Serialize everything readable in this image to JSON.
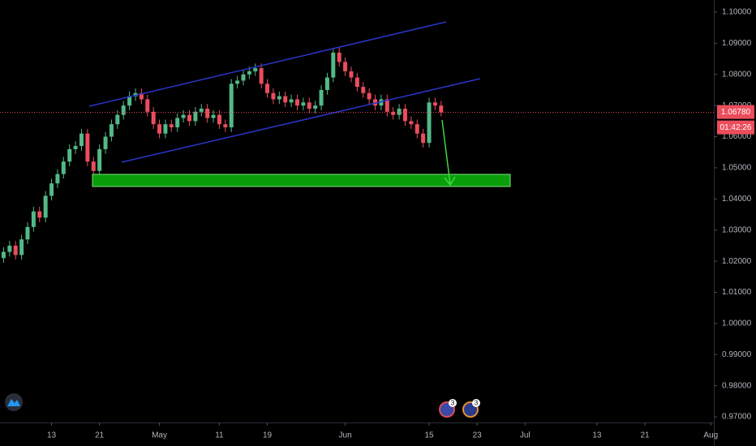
{
  "chart_data": {
    "type": "candlestick",
    "up_color": "#53b987",
    "down_color": "#eb4d5c",
    "categories": [
      null,
      null,
      null,
      null,
      null,
      null,
      null,
      null,
      null,
      null,
      null,
      null,
      null,
      null,
      null,
      null,
      null,
      null,
      null,
      null,
      null,
      null,
      null,
      null,
      null,
      null,
      null,
      null,
      null,
      null,
      null,
      null,
      null,
      null,
      null,
      null,
      null,
      null,
      null,
      null,
      null,
      null,
      null,
      null,
      null,
      null,
      null,
      null,
      null,
      null,
      null,
      null,
      null,
      null,
      null,
      null,
      null,
      null,
      null,
      null,
      null,
      null,
      null,
      null,
      null,
      null,
      null,
      null,
      null,
      null,
      null,
      null,
      null,
      null
    ],
    "open": [
      1.021,
      1.023,
      1.025,
      1.022,
      1.027,
      1.031,
      1.036,
      1.034,
      1.041,
      1.045,
      1.048,
      1.052,
      1.056,
      1.057,
      1.061,
      1.052,
      1.049,
      1.056,
      1.06,
      1.064,
      1.067,
      1.07,
      1.073,
      1.074,
      1.072,
      1.068,
      1.064,
      1.061,
      1.064,
      1.063,
      1.066,
      1.067,
      1.065,
      1.068,
      1.069,
      1.066,
      1.067,
      1.064,
      1.063,
      1.077,
      1.078,
      1.08,
      1.081,
      1.082,
      1.077,
      1.074,
      1.072,
      1.073,
      1.071,
      1.072,
      1.07,
      1.071,
      1.069,
      1.07,
      1.075,
      1.079,
      1.087,
      1.084,
      1.081,
      1.079,
      1.076,
      1.074,
      1.072,
      1.07,
      1.072,
      1.068,
      1.067,
      1.069,
      1.065,
      1.064,
      1.061,
      1.058,
      1.071,
      1.07
    ],
    "high": [
      1.0245,
      1.0265,
      1.0265,
      1.0285,
      1.0325,
      1.0375,
      1.0375,
      1.0425,
      1.0465,
      1.0495,
      1.0535,
      1.0575,
      1.0585,
      1.0625,
      1.0625,
      1.0535,
      1.0575,
      1.0615,
      1.0655,
      1.0685,
      1.0715,
      1.0745,
      1.0755,
      1.0755,
      1.0735,
      1.0695,
      1.0655,
      1.0655,
      1.0655,
      1.0675,
      1.0685,
      1.0685,
      1.0695,
      1.0705,
      1.0705,
      1.0685,
      1.0685,
      1.0655,
      1.0785,
      1.0795,
      1.0815,
      1.0825,
      1.0835,
      1.0835,
      1.0785,
      1.0755,
      1.0745,
      1.0745,
      1.0735,
      1.0735,
      1.0725,
      1.0725,
      1.0715,
      1.0765,
      1.0805,
      1.0885,
      1.0885,
      1.0855,
      1.0825,
      1.0805,
      1.0775,
      1.0755,
      1.0735,
      1.0735,
      1.0735,
      1.0695,
      1.0705,
      1.0705,
      1.0665,
      1.0655,
      1.0625,
      1.0725,
      1.0725,
      1.0715
    ],
    "low": [
      1.0195,
      1.0215,
      1.0205,
      1.0205,
      1.0255,
      1.0295,
      1.0325,
      1.0325,
      1.0395,
      1.0435,
      1.0465,
      1.0505,
      1.0545,
      1.0555,
      1.0505,
      1.0475,
      1.0475,
      1.0545,
      1.0585,
      1.0625,
      1.0655,
      1.0685,
      1.0715,
      1.0705,
      1.0665,
      1.0625,
      1.0595,
      1.0595,
      1.0615,
      1.0615,
      1.0645,
      1.0635,
      1.0635,
      1.0665,
      1.0645,
      1.0645,
      1.0625,
      1.0615,
      1.0615,
      1.0755,
      1.0765,
      1.0785,
      1.0795,
      1.0755,
      1.0725,
      1.0705,
      1.0705,
      1.0695,
      1.0695,
      1.0685,
      1.0685,
      1.0675,
      1.0675,
      1.0685,
      1.0735,
      1.0775,
      1.0825,
      1.0795,
      1.0775,
      1.0745,
      1.0725,
      1.0705,
      1.0685,
      1.0685,
      1.0665,
      1.0655,
      1.0655,
      1.0635,
      1.0625,
      1.0595,
      1.0565,
      1.0565,
      1.0685,
      1.0665
    ],
    "close": [
      1.023,
      1.025,
      1.022,
      1.027,
      1.031,
      1.036,
      1.034,
      1.041,
      1.045,
      1.048,
      1.052,
      1.056,
      1.057,
      1.061,
      1.052,
      1.049,
      1.056,
      1.06,
      1.064,
      1.067,
      1.07,
      1.073,
      1.074,
      1.072,
      1.068,
      1.064,
      1.061,
      1.064,
      1.063,
      1.066,
      1.067,
      1.065,
      1.068,
      1.069,
      1.066,
      1.067,
      1.064,
      1.063,
      1.077,
      1.078,
      1.08,
      1.081,
      1.082,
      1.077,
      1.074,
      1.072,
      1.073,
      1.071,
      1.072,
      1.07,
      1.071,
      1.069,
      1.07,
      1.075,
      1.079,
      1.087,
      1.084,
      1.081,
      1.079,
      1.076,
      1.074,
      1.072,
      1.07,
      1.072,
      1.068,
      1.067,
      1.069,
      1.065,
      1.064,
      1.061,
      1.058,
      1.071,
      1.07,
      1.0678
    ],
    "xlim": [
      -0.6,
      118.5
    ],
    "xticks": [
      {
        "value": 8,
        "label": "13"
      },
      {
        "value": 16,
        "label": "21"
      },
      {
        "value": 26,
        "label": "May"
      },
      {
        "value": 36,
        "label": "11"
      },
      {
        "value": 44,
        "label": "19"
      },
      {
        "value": 57,
        "label": "Jun"
      },
      {
        "value": 71,
        "label": "15"
      },
      {
        "value": 79,
        "label": "23"
      },
      {
        "value": 87,
        "label": "Jul"
      },
      {
        "value": 99,
        "label": "13"
      },
      {
        "value": 107,
        "label": "21"
      },
      {
        "value": 118,
        "label": "Aug"
      }
    ],
    "ylim": [
      0.9682,
      1.1039
    ],
    "yticks": [
      {
        "value": 1.1,
        "label": "1.10000"
      },
      {
        "value": 1.09,
        "label": "1.09000"
      },
      {
        "value": 1.08,
        "label": "1.08000"
      },
      {
        "value": 1.07,
        "label": "1.07000"
      },
      {
        "value": 1.06,
        "label": "1.06000"
      },
      {
        "value": 1.05,
        "label": "1.05000"
      },
      {
        "value": 1.04,
        "label": "1.04000"
      },
      {
        "value": 1.03,
        "label": "1.03000"
      },
      {
        "value": 1.02,
        "label": "1.02000"
      },
      {
        "value": 1.01,
        "label": "1.01000"
      },
      {
        "value": 1.0,
        "label": "1.00000"
      },
      {
        "value": 0.99,
        "label": "0.99000"
      },
      {
        "value": 0.98,
        "label": "0.98000"
      },
      {
        "value": 0.97,
        "label": "0.97000"
      }
    ],
    "last_price": {
      "value": 1.0678,
      "label": "1.06780"
    },
    "countdown": "01:42:26",
    "event_badges": [
      3,
      3
    ]
  }
}
